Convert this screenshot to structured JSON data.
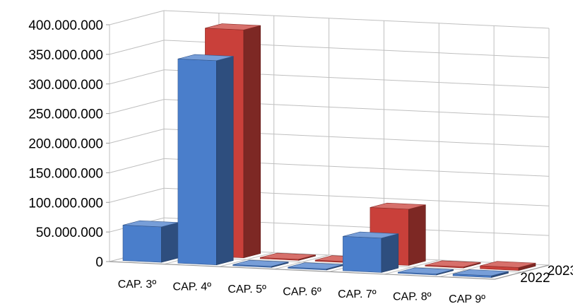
{
  "chart_data": {
    "type": "bar",
    "subtype": "3d-clustered-depth",
    "categories": [
      "CAP. 3º",
      "CAP. 4º",
      "CAP. 5º",
      "CAP. 6º",
      "CAP. 7º",
      "CAP. 8º",
      "CAP 9º"
    ],
    "series": [
      {
        "name": "2022",
        "color": "#4A7ECB",
        "values": [
          60000000,
          345000000,
          0,
          0,
          58000000,
          0,
          3000000
        ]
      },
      {
        "name": "2023",
        "color": "#C9403A",
        "values": [
          45000000,
          385000000,
          0,
          0,
          95000000,
          0,
          5000000
        ]
      }
    ],
    "y_ticks": [
      "0",
      "50.000.000",
      "100.000.000",
      "150.000.000",
      "200.000.000",
      "250.000.000",
      "300.000.000",
      "350.000.000",
      "400.000.000"
    ],
    "ylim": [
      0,
      400000000
    ],
    "title": "",
    "xlabel": "",
    "ylabel": "",
    "grid": true,
    "legend": "none"
  }
}
